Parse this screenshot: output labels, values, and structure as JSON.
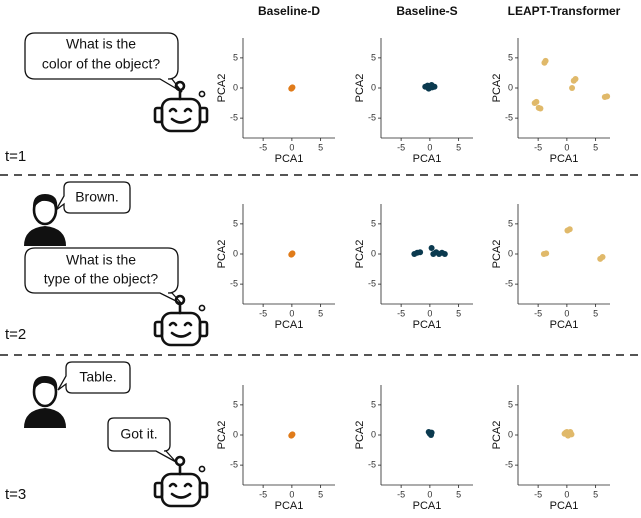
{
  "chart_data": [
    {
      "type": "scatter",
      "title": "Baseline-D",
      "xlabel": "PCA1",
      "ylabel": "PCA2",
      "color": "#e07b1a",
      "xlim": [
        -8.5,
        7.5
      ],
      "ylim": [
        -8.3,
        8.3
      ],
      "xticks": [
        -5,
        0,
        5
      ],
      "yticks": [
        -5,
        0,
        5
      ],
      "x": [
        0,
        0.1,
        -0.1
      ],
      "y": [
        0,
        0.1,
        -0.1
      ]
    },
    {
      "type": "scatter",
      "title": "Baseline-S",
      "xlabel": "PCA1",
      "ylabel": "PCA2",
      "color": "#0b3a4f",
      "xlim": [
        -8.5,
        7.5
      ],
      "ylim": [
        -8.3,
        8.3
      ],
      "xticks": [
        -5,
        0,
        5
      ],
      "yticks": [
        -5,
        0,
        5
      ],
      "x": [
        -0.8,
        -0.4,
        0,
        0.4,
        0.8,
        -0.2,
        0.3
      ],
      "y": [
        0.2,
        0.4,
        0.3,
        0.1,
        0.2,
        -0.1,
        0.5
      ]
    },
    {
      "type": "scatter",
      "title": "LEAPT-Transformer",
      "xlabel": "PCA1",
      "ylabel": "PCA2",
      "color": "#e0b96a",
      "xlim": [
        -8.5,
        7.5
      ],
      "ylim": [
        -8.3,
        8.3
      ],
      "xticks": [
        -5,
        0,
        5
      ],
      "yticks": [
        -5,
        0,
        5
      ],
      "x": [
        -3.9,
        -3.7,
        1.2,
        1.5,
        0.9,
        6.6,
        7,
        -5.6,
        -5.3,
        -4.9,
        -4.6
      ],
      "y": [
        4.2,
        4.5,
        1.2,
        1.5,
        0,
        -1.5,
        -1.4,
        -2.5,
        -2.3,
        -3.3,
        -3.4
      ]
    },
    {
      "type": "scatter",
      "xlabel": "PCA1",
      "ylabel": "PCA2",
      "color": "#e07b1a",
      "xlim": [
        -8.5,
        7.5
      ],
      "ylim": [
        -8.3,
        8.3
      ],
      "xticks": [
        -5,
        0,
        5
      ],
      "yticks": [
        -5,
        0,
        5
      ],
      "x": [
        0,
        0.1,
        -0.1
      ],
      "y": [
        0,
        0.1,
        -0.1
      ]
    },
    {
      "type": "scatter",
      "xlabel": "PCA1",
      "ylabel": "PCA2",
      "color": "#0b3a4f",
      "xlim": [
        -8.5,
        7.5
      ],
      "ylim": [
        -8.3,
        8.3
      ],
      "xticks": [
        -5,
        0,
        5
      ],
      "yticks": [
        -5,
        0,
        5
      ],
      "x": [
        -2.7,
        -2.2,
        -1.7,
        0.3,
        0.6,
        1.1,
        1.6,
        2.1,
        2.6
      ],
      "y": [
        0,
        0.2,
        0.3,
        1,
        0,
        0.3,
        0,
        0.2,
        0
      ]
    },
    {
      "type": "scatter",
      "xlabel": "PCA1",
      "ylabel": "PCA2",
      "color": "#e0b96a",
      "xlim": [
        -8.5,
        7.5
      ],
      "ylim": [
        -8.3,
        8.3
      ],
      "xticks": [
        -5,
        0,
        5
      ],
      "yticks": [
        -5,
        0,
        5
      ],
      "x": [
        0.1,
        0.5,
        -4,
        -3.6,
        5.8,
        6.2
      ],
      "y": [
        3.9,
        4.1,
        0,
        0.1,
        -0.8,
        -0.5
      ]
    },
    {
      "type": "scatter",
      "xlabel": "PCA1",
      "ylabel": "PCA2",
      "color": "#e07b1a",
      "xlim": [
        -8.5,
        7.5
      ],
      "ylim": [
        -8.3,
        8.3
      ],
      "xticks": [
        -5,
        0,
        5
      ],
      "yticks": [
        -5,
        0,
        5
      ],
      "x": [
        0,
        0.1,
        -0.1
      ],
      "y": [
        0,
        0.1,
        -0.1
      ]
    },
    {
      "type": "scatter",
      "xlabel": "PCA1",
      "ylabel": "PCA2",
      "color": "#0b3a4f",
      "xlim": [
        -8.5,
        7.5
      ],
      "ylim": [
        -8.3,
        8.3
      ],
      "xticks": [
        -5,
        0,
        5
      ],
      "yticks": [
        -5,
        0,
        5
      ],
      "x": [
        0,
        0.3,
        -0.2,
        0.2
      ],
      "y": [
        0.2,
        0.4,
        0.5,
        0
      ]
    },
    {
      "type": "scatter",
      "xlabel": "PCA1",
      "ylabel": "PCA2",
      "color": "#e0b96a",
      "xlim": [
        -8.5,
        7.5
      ],
      "ylim": [
        -8.3,
        8.3
      ],
      "xticks": [
        -5,
        0,
        5
      ],
      "yticks": [
        -5,
        0,
        5
      ],
      "x": [
        -0.4,
        0,
        0.4,
        0.8,
        0.2,
        -0.2,
        0.6
      ],
      "y": [
        0.2,
        0.5,
        0.3,
        0.1,
        -0.1,
        0.4,
        0.5
      ]
    }
  ],
  "dialogue": [
    {
      "time": "t=1",
      "bubbles": [
        {
          "lines": [
            "What is the",
            "color of the object?"
          ]
        }
      ]
    },
    {
      "time": "t=2",
      "bubbles": [
        {
          "lines": [
            "Brown."
          ]
        },
        {
          "lines": [
            "What is the",
            "type of the object?"
          ]
        }
      ]
    },
    {
      "time": "t=3",
      "bubbles": [
        {
          "lines": [
            "Table."
          ]
        },
        {
          "lines": [
            "Got it."
          ]
        }
      ]
    }
  ]
}
